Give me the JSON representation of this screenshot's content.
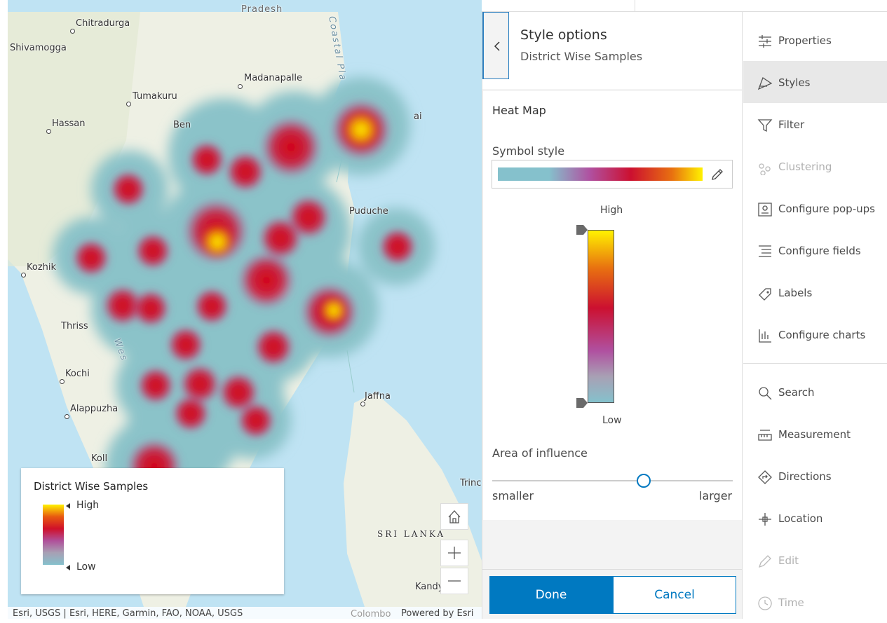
{
  "map": {
    "labels": [
      "Pradesh",
      "Chitradurga",
      "Shivamogga",
      "Madanapalle",
      "Tumakuru",
      "Hassan",
      "Ben",
      "Puduche",
      "Kozhik",
      "Thriss",
      "Kochi",
      "Alappuzha",
      "Koll",
      "Jaffna",
      "SRI LANKA",
      "Trinc",
      "Kandy",
      "Colombo",
      "Coastal Pla",
      "Wes",
      "ai"
    ],
    "legend": {
      "title": "District Wise Samples",
      "high": "High",
      "low": "Low"
    },
    "attribution": "Esri, USGS | Esri, HERE, Garmin, FAO, NOAA, USGS",
    "powered_by": "Powered by Esri"
  },
  "panel": {
    "title": "Style options",
    "subtitle": "District Wise Samples",
    "section": "Heat Map",
    "symbol_style": "Symbol style",
    "high": "High",
    "low": "Low",
    "area_of_influence": "Area of influence",
    "smaller": "smaller",
    "larger": "larger",
    "done": "Done",
    "cancel": "Cancel"
  },
  "sidebar": {
    "items": [
      "Properties",
      "Styles",
      "Filter",
      "Clustering",
      "Configure pop-ups",
      "Configure fields",
      "Labels",
      "Configure charts",
      "Search",
      "Measurement",
      "Directions",
      "Location",
      "Edit",
      "Time"
    ]
  }
}
